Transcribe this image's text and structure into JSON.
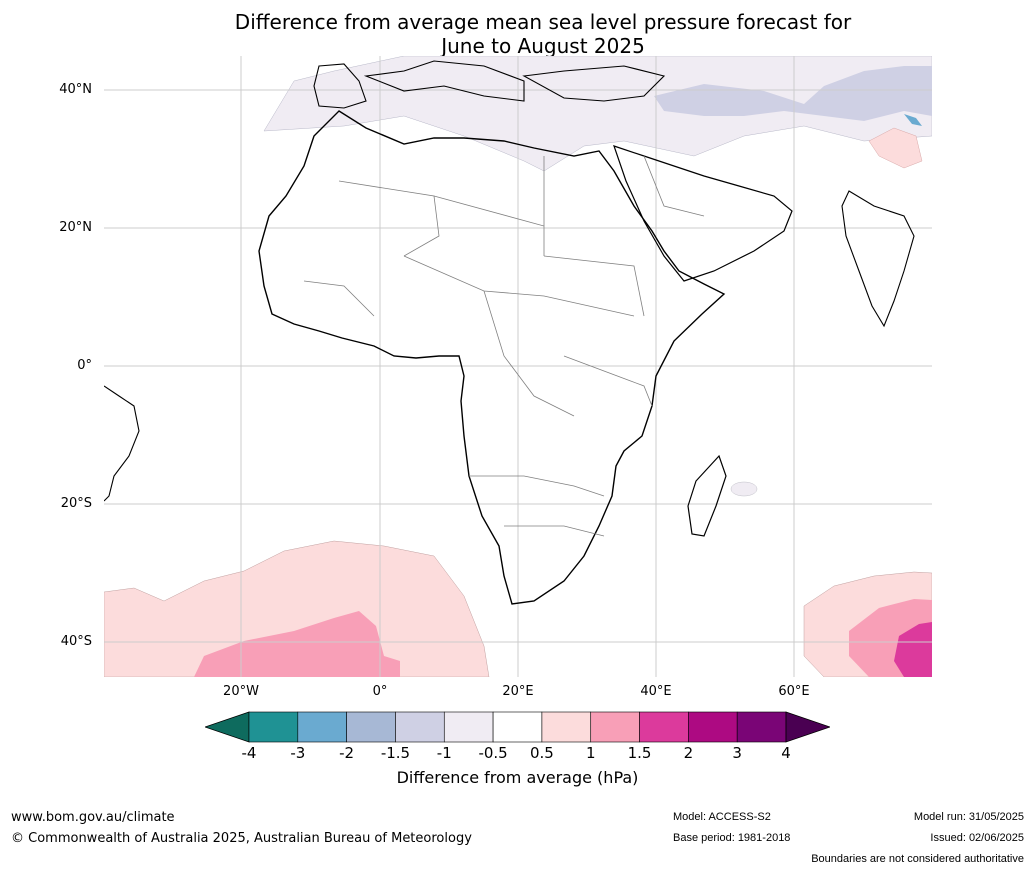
{
  "title_line1": "Difference from average mean sea level pressure forecast for",
  "title_line2": "June to August 2025",
  "lat_labels": [
    "40°N",
    "20°N",
    "0°",
    "20°S",
    "40°S"
  ],
  "lon_labels": [
    "20°W",
    "0°",
    "20°E",
    "40°E",
    "60°E"
  ],
  "colorbar": {
    "title": "Difference from average (hPa)",
    "ticks": [
      "-4",
      "-3",
      "-2",
      "-1.5",
      "-1",
      "-0.5",
      "0.5",
      "1",
      "1.5",
      "2",
      "3",
      "4"
    ],
    "colors": [
      "#0e6b5e",
      "#1f9294",
      "#6aaad0",
      "#a7b8d5",
      "#cfd0e4",
      "#f0ecf3",
      "#ffffff",
      "#fcdcdc",
      "#f89fb7",
      "#dc3a9c",
      "#ad0a82",
      "#7a0576",
      "#4a0052"
    ]
  },
  "footer": {
    "url": "www.bom.gov.au/climate",
    "copyright": "© Commonwealth of Australia 2025, Australian Bureau of Meteorology",
    "model": "Model: ACCESS-S2",
    "base_period": "Base period: 1981-2018",
    "model_run": "Model run: 31/05/2025",
    "issued": "Issued: 02/06/2025",
    "disclaimer": "Boundaries are not considered authoritative"
  }
}
